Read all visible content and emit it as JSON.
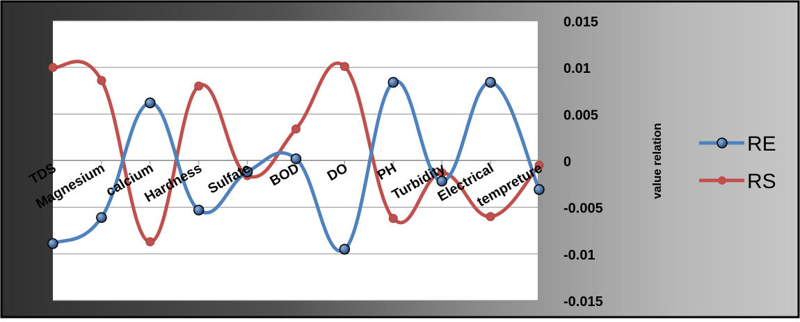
{
  "chart_data": {
    "type": "line",
    "smooth": true,
    "categories": [
      "TDS",
      "Magnesium",
      "calcium",
      "Hardness",
      "Sulfate",
      "BOD",
      "DO",
      "PH",
      "Turbidity",
      "Electrical",
      "tempreture"
    ],
    "series": [
      {
        "name": "RE",
        "color": "#4f81bd",
        "values": [
          -0.0089,
          -0.0061,
          0.0062,
          -0.0053,
          -0.0012,
          0.0002,
          -0.0095,
          0.0084,
          -0.0022,
          0.0084,
          -0.0031
        ]
      },
      {
        "name": "RS",
        "color": "#c0504d",
        "values": [
          0.01,
          0.0086,
          -0.0087,
          0.008,
          -0.0016,
          0.0034,
          0.0101,
          -0.0062,
          -0.0013,
          -0.006,
          -0.0005
        ]
      }
    ],
    "ylabel": "value relation",
    "ylim": [
      -0.015,
      0.015
    ],
    "yticks": [
      "0.015",
      "0.01",
      "0.005",
      "0",
      "-0.005",
      "-0.01",
      "-0.015"
    ],
    "y_axis_position": "right",
    "grid": true,
    "legend": "right"
  }
}
